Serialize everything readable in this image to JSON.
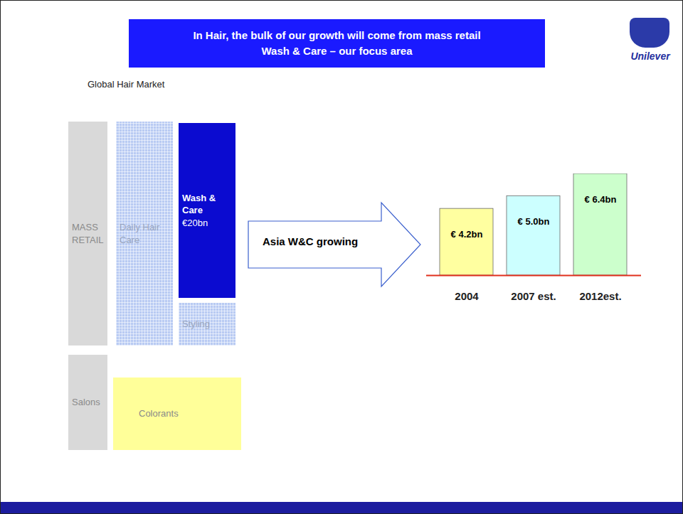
{
  "title": "In Hair, the bulk of our growth will come from mass retail Wash & Care – our focus area",
  "logo": "Unilever",
  "market": {
    "title": "Global Hair Market",
    "blocks": [
      {
        "label": "MASS RETAIL"
      },
      {
        "label": "Daily Hair Care"
      },
      {
        "label": "Wash & Care",
        "value": "€20bn"
      },
      {
        "label": "Styling"
      },
      {
        "label": "Salons"
      },
      {
        "label": "Colorants"
      }
    ]
  },
  "arrow_label": "Asia W&C growing",
  "chart_data": {
    "type": "bar",
    "categories": [
      "2004",
      "2007 est.",
      "2012est."
    ],
    "values": [
      4.2,
      5.0,
      6.4
    ],
    "value_labels": [
      "€ 4.2bn",
      "€ 5.0bn",
      "€ 6.4bn"
    ],
    "colors": [
      "#ffffa0",
      "#ccffff",
      "#ccffcc"
    ],
    "data_labels": true,
    "tick_labels": "x",
    "ylim": [
      0,
      6.4
    ]
  }
}
